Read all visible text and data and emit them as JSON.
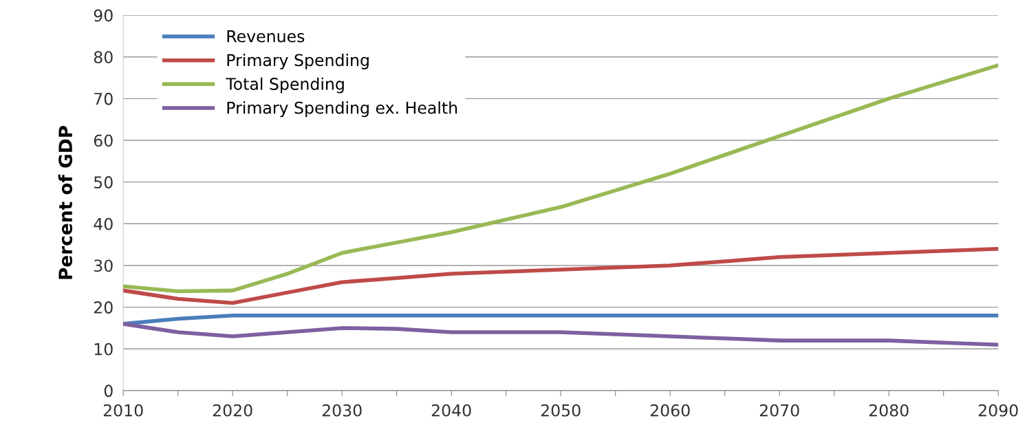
{
  "chart_data": {
    "type": "line",
    "ylabel": "Percent of GDP",
    "x": [
      2010,
      2015,
      2020,
      2025,
      2030,
      2035,
      2040,
      2045,
      2050,
      2055,
      2060,
      2065,
      2070,
      2075,
      2080,
      2085,
      2090
    ],
    "series": [
      {
        "name": "Revenues",
        "color": "#4a7ebb",
        "values": [
          16,
          17.2,
          18,
          18,
          18,
          18,
          18,
          18,
          18,
          18,
          18,
          18,
          18,
          18,
          18,
          18,
          18
        ]
      },
      {
        "name": "Primary Spending",
        "color": "#be4b48",
        "values": [
          24,
          22,
          21,
          23.5,
          26,
          27,
          28,
          28.5,
          29,
          29.5,
          30,
          31,
          32,
          32.5,
          33,
          33.5,
          34
        ]
      },
      {
        "name": "Total Spending",
        "color": "#98b954",
        "values": [
          25,
          23.8,
          24,
          28,
          33,
          35.5,
          38,
          41,
          44,
          48,
          52,
          56.5,
          61,
          65.5,
          70,
          74,
          78
        ]
      },
      {
        "name": "Primary Spending ex. Health",
        "color": "#7d60a0",
        "values": [
          16,
          14,
          13,
          14,
          15,
          14.8,
          14,
          14,
          14,
          13.5,
          13,
          12.5,
          12,
          12,
          12,
          11.5,
          11
        ]
      }
    ],
    "xlim": [
      2010,
      2090
    ],
    "xticks": [
      2010,
      {
        "value": 2015,
        "label": null
      },
      2020,
      {
        "value": 2025,
        "label": null
      },
      2030,
      {
        "value": 2035,
        "label": null
      },
      2040,
      {
        "value": 2045,
        "label": null
      },
      2050,
      {
        "value": 2055,
        "label": null
      },
      2060,
      {
        "value": 2065,
        "label": null
      },
      2070,
      {
        "value": 2075,
        "label": null
      },
      2080,
      {
        "value": 2085,
        "label": null
      },
      2090
    ],
    "ylim": [
      0,
      90
    ],
    "yticks": [
      0,
      10,
      20,
      30,
      40,
      50,
      60,
      70,
      80,
      90
    ],
    "grid": "y",
    "legend": "top left",
    "marker": "none",
    "line_style": "solid"
  }
}
